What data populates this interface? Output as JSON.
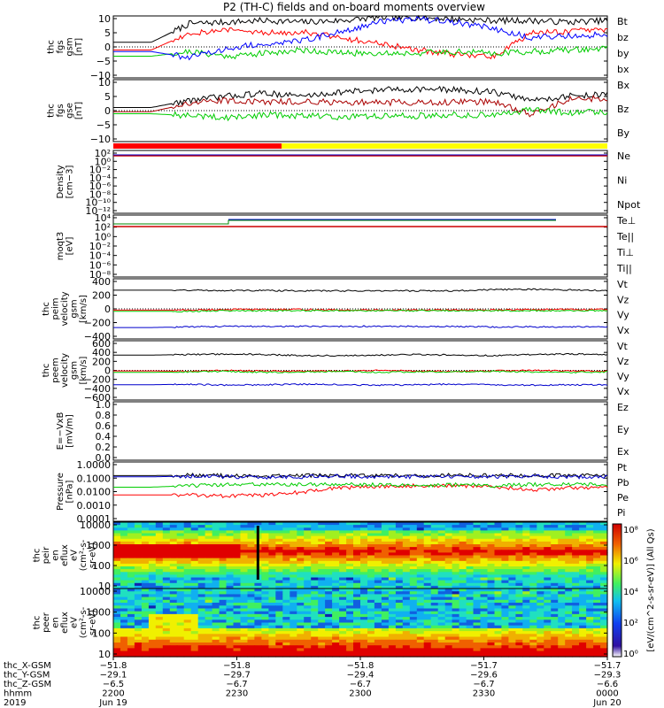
{
  "title": "P2 (TH-C) fields and on-board moments overview",
  "chart_data": [
    {
      "type": "line",
      "id": "fgs-gsm",
      "ylabel": [
        "thc",
        "fgs",
        "gsm",
        "[nT]"
      ],
      "ylim": [
        -10,
        10
      ],
      "yticks": [
        "10",
        "5",
        "0",
        "−5",
        "−10"
      ],
      "series": [
        {
          "name": "Bt",
          "color": "#000000",
          "values": [
            1.5,
            1.5,
            7.5,
            8.0,
            8.5,
            8.0,
            8.5,
            9.5,
            9.5,
            9.0,
            8.5,
            8.5,
            8.0,
            8.5
          ]
        },
        {
          "name": "bz",
          "color": "#ff0000",
          "values": [
            -1.0,
            -1.0,
            4.5,
            5.5,
            4.5,
            5.0,
            3.0,
            1.0,
            -1.0,
            -2.5,
            -3.0,
            4.5,
            5.0,
            5.5
          ]
        },
        {
          "name": "by",
          "color": "#00cc00",
          "values": [
            -3.0,
            -3.0,
            -1.5,
            -3.0,
            -2.0,
            -1.0,
            -2.0,
            -2.0,
            -2.0,
            -1.5,
            -2.0,
            -1.5,
            -1.0,
            -0.5
          ]
        },
        {
          "name": "bx",
          "color": "#0000ff",
          "values": [
            -1.5,
            -1.5,
            -3.5,
            -0.5,
            1.0,
            2.0,
            5.0,
            8.0,
            9.0,
            8.0,
            6.0,
            3.0,
            3.5,
            4.0
          ]
        }
      ]
    },
    {
      "type": "line",
      "id": "fgs-gse",
      "ylabel": [
        "thc",
        "fgs",
        "gse",
        "[nT]"
      ],
      "ylim": [
        -15,
        15
      ],
      "yticks": [
        "10",
        "5",
        "0",
        "−5",
        "−10"
      ],
      "series": [
        {
          "name": "Bx",
          "color": "#000000",
          "values": [
            1.5,
            1.5,
            5.0,
            7.0,
            8.5,
            7.0,
            9.0,
            10.0,
            10.5,
            10.0,
            9.0,
            5.0,
            7.0,
            8.0
          ]
        },
        {
          "name": "Bz",
          "color": "#aa0000",
          "values": [
            -0.5,
            -0.5,
            3.5,
            5.0,
            4.0,
            4.5,
            4.0,
            4.0,
            4.0,
            4.0,
            4.5,
            -2.0,
            5.5,
            6.0
          ]
        },
        {
          "name": "By",
          "color": "#00cc00",
          "values": [
            -1.5,
            -1.5,
            -2.5,
            -3.5,
            -2.0,
            -2.5,
            -3.0,
            -2.5,
            -2.5,
            -2.0,
            -2.0,
            0.5,
            -1.0,
            -0.5
          ]
        }
      ]
    },
    {
      "type": "line",
      "id": "density",
      "ylabel": [
        "Density",
        "[cm−3]"
      ],
      "yticks": [
        "10²",
        "10⁰",
        "10⁻²",
        "10⁻⁴",
        "10⁻⁶",
        "10⁻⁸",
        "10⁻¹⁰",
        "10⁻¹²"
      ],
      "series": [
        {
          "name": "Ne",
          "color": "#ff0000",
          "values": []
        },
        {
          "name": "Ni",
          "color": "#000000",
          "values": []
        },
        {
          "name": "Npot",
          "color": "#0000cc",
          "values": []
        }
      ]
    },
    {
      "type": "line",
      "id": "temperature",
      "ylabel": [
        "moqt3",
        "[eV]"
      ],
      "yticks": [
        "10⁴",
        "10²",
        "10⁰",
        "10⁻²",
        "10⁻⁴",
        "10⁻⁶",
        "10⁻⁸"
      ],
      "series": [
        {
          "name": "Te⊥",
          "color": "#ff0000",
          "values": []
        },
        {
          "name": "Te||",
          "color": "#000000",
          "values": []
        },
        {
          "name": "Ti⊥",
          "color": "#0000cc",
          "values": []
        },
        {
          "name": "Ti||",
          "color": "#00cc00",
          "values": []
        }
      ]
    },
    {
      "type": "line",
      "id": "peim-velocity",
      "ylabel": [
        "thc",
        "peim",
        "velocity",
        "gsm",
        "[km/s]"
      ],
      "ylim": [
        -500,
        500
      ],
      "yticks": [
        "400",
        "200",
        "0",
        "−200",
        "−400"
      ],
      "series": [
        {
          "name": "Vt",
          "color": "#000000",
          "values": [
            310,
            310,
            310,
            305,
            305,
            300,
            300,
            300,
            300,
            300,
            320,
            325,
            315,
            305
          ]
        },
        {
          "name": "Vz",
          "color": "#ff0000",
          "values": [
            -20,
            -20,
            -20,
            -10,
            -10,
            -10,
            -20,
            -20,
            -20,
            -20,
            -20,
            -10,
            -10,
            -10
          ]
        },
        {
          "name": "Vy",
          "color": "#00cc00",
          "values": [
            -40,
            -40,
            -40,
            -30,
            -30,
            -30,
            -30,
            -30,
            -30,
            -30,
            -30,
            -30,
            -30,
            -30
          ]
        },
        {
          "name": "Vx",
          "color": "#0000cc",
          "values": [
            -310,
            -310,
            -300,
            -290,
            -290,
            -290,
            -290,
            -290,
            -290,
            -295,
            -300,
            -300,
            -300,
            -300
          ]
        }
      ]
    },
    {
      "type": "line",
      "id": "peem-velocity",
      "ylabel": [
        "thc",
        "peem",
        "velocity",
        "gsm",
        "[km/s]"
      ],
      "ylim": [
        -600,
        600
      ],
      "yticks": [
        "600",
        "400",
        "200",
        "0",
        "−200",
        "−400",
        "−600"
      ],
      "series": [
        {
          "name": "Vt",
          "color": "#000000",
          "values": [
            310,
            310,
            320,
            330,
            320,
            300,
            300,
            310,
            320,
            310,
            300,
            320,
            330,
            320
          ]
        },
        {
          "name": "Vz",
          "color": "#ff0000",
          "values": [
            -10,
            -10,
            -20,
            0,
            -10,
            -20,
            -10,
            0,
            -10,
            -20,
            -10,
            0,
            -10,
            -20
          ]
        },
        {
          "name": "Vy",
          "color": "#00cc00",
          "values": [
            -40,
            -40,
            -30,
            -20,
            -40,
            -30,
            -20,
            -40,
            -30,
            -30,
            -20,
            -30,
            -40,
            -30
          ]
        },
        {
          "name": "Vx",
          "color": "#0000cc",
          "values": [
            -290,
            -290,
            -280,
            -300,
            -290,
            -280,
            -290,
            -300,
            -290,
            -280,
            -290,
            -300,
            -290,
            -295
          ]
        }
      ]
    },
    {
      "type": "line",
      "id": "efield",
      "ylabel": [
        "E=−VxB",
        "[mV/m]"
      ],
      "ylim": [
        0,
        1
      ],
      "yticks": [
        "1.0",
        "0.8",
        "0.6",
        "0.4",
        "0.2",
        "0.0"
      ],
      "series": [
        {
          "name": "Ez",
          "color": "#ff0000",
          "values": []
        },
        {
          "name": "Ey",
          "color": "#00cc00",
          "values": []
        },
        {
          "name": "Ex",
          "color": "#0000cc",
          "values": []
        }
      ]
    },
    {
      "type": "line",
      "id": "pressure",
      "yscale": "log",
      "ylabel": [
        "Pressure",
        "[nPa]"
      ],
      "ylim": [
        0.0001,
        1.0
      ],
      "yticks": [
        "1.0000",
        "0.1000",
        "0.0100",
        "0.0010",
        "0.0001"
      ],
      "series": [
        {
          "name": "Pt",
          "color": "#000000",
          "values": [
            0.12,
            0.12,
            0.13,
            0.12,
            0.11,
            0.12,
            0.13,
            0.12,
            0.12,
            0.13,
            0.12,
            0.13,
            0.12,
            0.12
          ]
        },
        {
          "name": "Pb",
          "color": "#ff0000",
          "values": [
            0.006,
            0.006,
            0.006,
            0.005,
            0.006,
            0.009,
            0.018,
            0.022,
            0.025,
            0.025,
            0.022,
            0.012,
            0.018,
            0.02
          ]
        },
        {
          "name": "Pe",
          "color": "#00cc00",
          "values": [
            0.02,
            0.02,
            0.025,
            0.03,
            0.03,
            0.03,
            0.03,
            0.03,
            0.025,
            0.03,
            0.025,
            0.03,
            0.03,
            0.03
          ]
        },
        {
          "name": "Pi",
          "color": "#0000cc",
          "values": [
            0.1,
            0.1,
            0.11,
            0.1,
            0.09,
            0.1,
            0.11,
            0.1,
            0.1,
            0.11,
            0.1,
            0.11,
            0.1,
            0.1
          ]
        }
      ]
    },
    {
      "type": "heatmap",
      "id": "peir-spectrogram",
      "yscale": "log",
      "ylabel": [
        "thc",
        "peir",
        "en",
        "eflux",
        "eV",
        "(cm²-s-",
        "sr-eV)"
      ],
      "ylim": [
        6,
        30000
      ],
      "yticks": [
        "10000",
        "1000",
        "100",
        "10"
      ]
    },
    {
      "type": "heatmap",
      "id": "peer-spectrogram",
      "yscale": "log",
      "ylabel": [
        "thc",
        "peer",
        "en",
        "eflux",
        "eV",
        "(cm²-s-",
        "sr-eV)"
      ],
      "ylim": [
        6,
        30000
      ],
      "yticks": [
        "10000",
        "1000",
        "100",
        "10"
      ]
    }
  ],
  "colorbar": {
    "ticks": [
      "10⁸",
      "10⁶",
      "10⁴",
      "10²",
      "10⁰"
    ],
    "label": "[eV/(cm^2-s-sr-eV)] (All Qs)"
  },
  "xaxis": {
    "rows": [
      {
        "label": "thc_X-GSM",
        "values": [
          "−51.8",
          "−51.8",
          "−51.8",
          "−51.7",
          "−51.7"
        ]
      },
      {
        "label": "thc_Y-GSM",
        "values": [
          "−29.1",
          "−29.7",
          "−29.4",
          "−29.6",
          "−29.3"
        ]
      },
      {
        "label": "thc_Z-GSM",
        "values": [
          "−6.5",
          "−6.7",
          "−6.7",
          "−6.7",
          "−6.6"
        ]
      },
      {
        "label": "hhmm",
        "values": [
          "2200",
          "2230",
          "2300",
          "2330",
          "0000"
        ]
      },
      {
        "label": "2019",
        "values": [
          "Jun 19",
          "",
          "",
          "",
          "Jun 20"
        ]
      }
    ]
  }
}
